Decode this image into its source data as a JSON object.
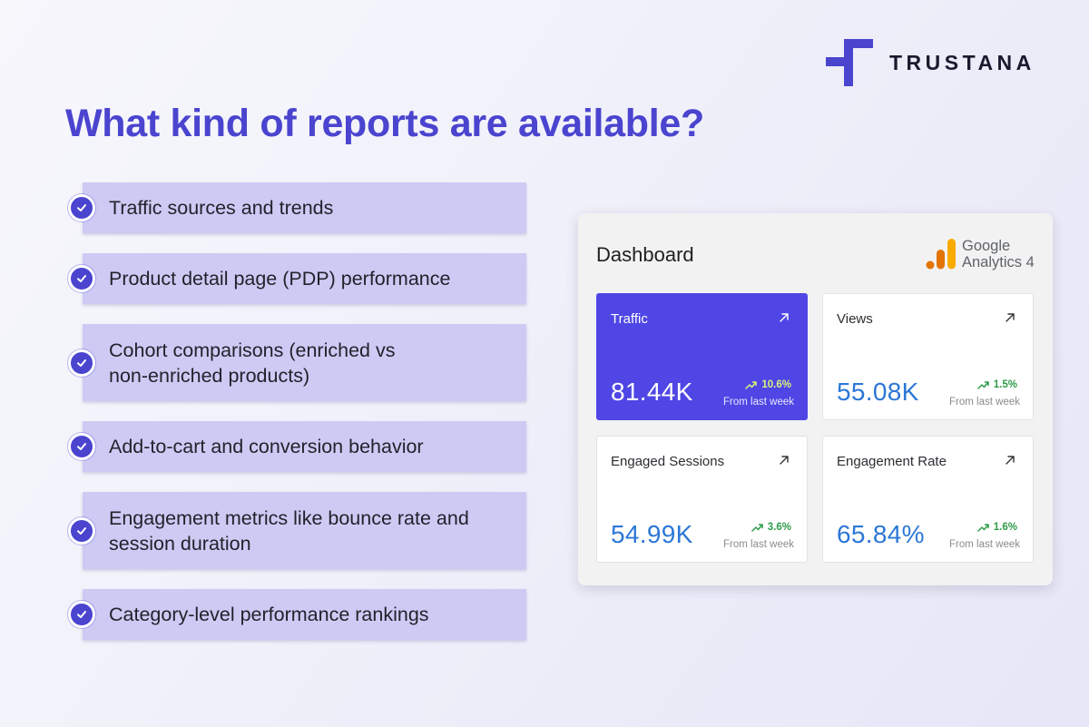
{
  "brand": {
    "name": "TRUSTANA",
    "color": "#4a44cf"
  },
  "headline": "What kind of reports are available?",
  "reports": [
    "Traffic sources and trends",
    "Product detail page (PDP) performance",
    "Cohort comparisons (enriched vs non-enriched products)",
    "Add-to-cart and conversion behavior",
    "Engagement metrics like bounce rate and session duration",
    "Category-level performance rankings"
  ],
  "dashboard": {
    "title": "Dashboard",
    "ga_logo": {
      "line1": "Google",
      "line2": "Analytics 4"
    },
    "metrics": [
      {
        "label": "Traffic",
        "value": "81.44K",
        "change": "10.6%",
        "caption": "From last week",
        "highlight": true
      },
      {
        "label": "Views",
        "value": "55.08K",
        "change": "1.5%",
        "caption": "From last week",
        "highlight": false
      },
      {
        "label": "Engaged Sessions",
        "value": "54.99K",
        "change": "3.6%",
        "caption": "From last week",
        "highlight": false
      },
      {
        "label": "Engagement Rate",
        "value": "65.84%",
        "change": "1.6%",
        "caption": "From last week",
        "highlight": false
      }
    ]
  },
  "colors": {
    "accent": "#4a44cf",
    "list_item_bg": "#cdcbf4",
    "highlight_card": "#4f46e5",
    "metric_value": "#2c77d6",
    "positive_change": "#2e9c4a"
  },
  "icons": [
    "trustana-logo",
    "check-icon",
    "google-analytics-logo",
    "arrow-up-right-icon",
    "trend-up-icon"
  ]
}
